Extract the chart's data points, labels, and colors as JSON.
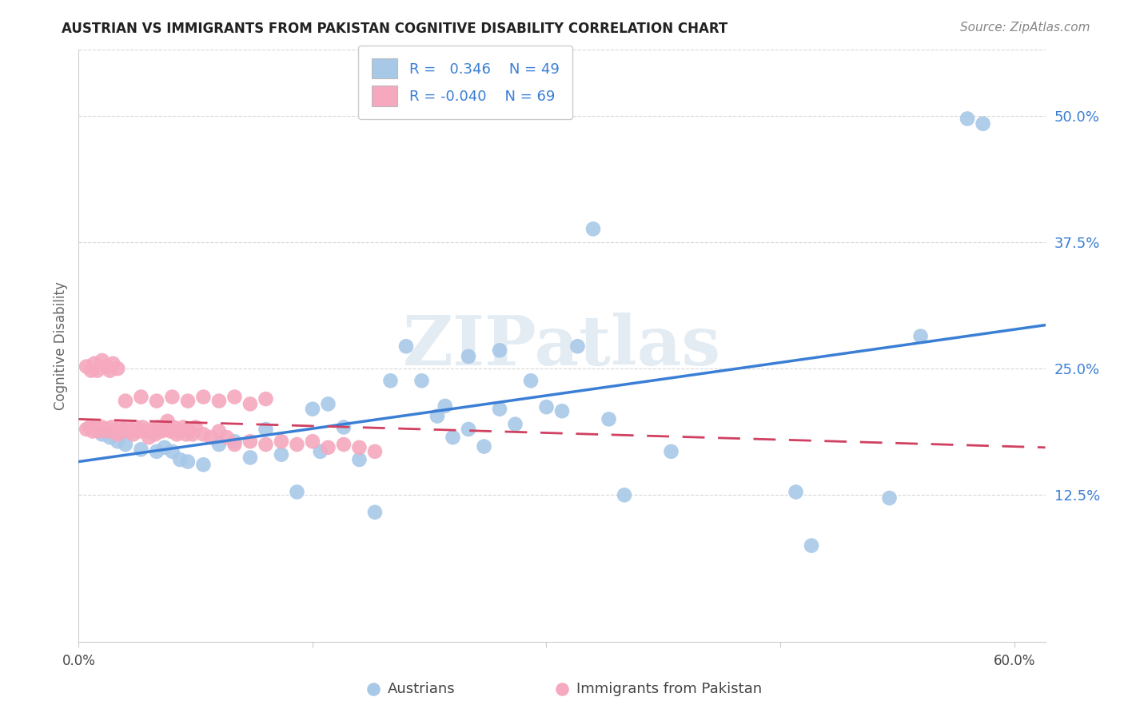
{
  "title": "AUSTRIAN VS IMMIGRANTS FROM PAKISTAN COGNITIVE DISABILITY CORRELATION CHART",
  "source": "Source: ZipAtlas.com",
  "ylabel": "Cognitive Disability",
  "ytick_labels": [
    "12.5%",
    "25.0%",
    "37.5%",
    "50.0%"
  ],
  "ytick_values": [
    0.125,
    0.25,
    0.375,
    0.5
  ],
  "xlim": [
    0.0,
    0.62
  ],
  "ylim": [
    -0.02,
    0.565
  ],
  "legend_blue_r": "0.346",
  "legend_blue_n": "49",
  "legend_pink_r": "-0.040",
  "legend_pink_n": "69",
  "blue_color": "#a8c8e8",
  "pink_color": "#f5a8be",
  "trendline_blue": "#3a7fd5",
  "trendline_pink": "#d04060",
  "watermark_color": "#c8d8e8",
  "grid_color": "#d8d8d8",
  "blue_trend_x": [
    0.0,
    0.62
  ],
  "blue_trend_y": [
    0.158,
    0.293
  ],
  "pink_trend_x": [
    0.0,
    0.62
  ],
  "pink_trend_y": [
    0.2,
    0.172
  ],
  "blue_scatter_x": [
    0.015,
    0.02,
    0.025,
    0.03,
    0.04,
    0.05,
    0.055,
    0.06,
    0.065,
    0.07,
    0.08,
    0.09,
    0.1,
    0.11,
    0.12,
    0.13,
    0.14,
    0.15,
    0.155,
    0.16,
    0.17,
    0.18,
    0.19,
    0.2,
    0.21,
    0.22,
    0.23,
    0.235,
    0.24,
    0.25,
    0.26,
    0.27,
    0.28,
    0.3,
    0.32,
    0.33,
    0.35,
    0.38,
    0.29,
    0.31,
    0.34,
    0.25,
    0.27,
    0.46,
    0.47,
    0.52,
    0.54,
    0.57,
    0.58
  ],
  "blue_scatter_y": [
    0.185,
    0.182,
    0.178,
    0.175,
    0.17,
    0.168,
    0.172,
    0.168,
    0.16,
    0.158,
    0.155,
    0.175,
    0.178,
    0.162,
    0.19,
    0.165,
    0.128,
    0.21,
    0.168,
    0.215,
    0.192,
    0.16,
    0.108,
    0.238,
    0.272,
    0.238,
    0.203,
    0.213,
    0.182,
    0.19,
    0.173,
    0.21,
    0.195,
    0.212,
    0.272,
    0.388,
    0.125,
    0.168,
    0.238,
    0.208,
    0.2,
    0.262,
    0.268,
    0.128,
    0.075,
    0.122,
    0.282,
    0.497,
    0.492
  ],
  "pink_scatter_x": [
    0.005,
    0.007,
    0.009,
    0.011,
    0.013,
    0.015,
    0.017,
    0.019,
    0.021,
    0.023,
    0.025,
    0.027,
    0.029,
    0.031,
    0.033,
    0.035,
    0.037,
    0.039,
    0.041,
    0.043,
    0.045,
    0.047,
    0.049,
    0.051,
    0.053,
    0.055,
    0.057,
    0.059,
    0.061,
    0.063,
    0.065,
    0.067,
    0.069,
    0.071,
    0.073,
    0.075,
    0.08,
    0.085,
    0.09,
    0.095,
    0.1,
    0.11,
    0.12,
    0.13,
    0.14,
    0.15,
    0.16,
    0.17,
    0.18,
    0.19,
    0.005,
    0.008,
    0.01,
    0.012,
    0.015,
    0.018,
    0.02,
    0.022,
    0.025,
    0.03,
    0.04,
    0.05,
    0.06,
    0.07,
    0.08,
    0.09,
    0.1,
    0.11,
    0.12
  ],
  "pink_scatter_y": [
    0.19,
    0.192,
    0.188,
    0.192,
    0.188,
    0.192,
    0.19,
    0.188,
    0.192,
    0.188,
    0.185,
    0.192,
    0.188,
    0.192,
    0.188,
    0.185,
    0.192,
    0.188,
    0.192,
    0.188,
    0.182,
    0.19,
    0.185,
    0.192,
    0.188,
    0.19,
    0.198,
    0.188,
    0.192,
    0.185,
    0.188,
    0.192,
    0.185,
    0.188,
    0.185,
    0.192,
    0.185,
    0.182,
    0.188,
    0.182,
    0.175,
    0.178,
    0.175,
    0.178,
    0.175,
    0.178,
    0.172,
    0.175,
    0.172,
    0.168,
    0.252,
    0.248,
    0.255,
    0.248,
    0.258,
    0.252,
    0.248,
    0.255,
    0.25,
    0.218,
    0.222,
    0.218,
    0.222,
    0.218,
    0.222,
    0.218,
    0.222,
    0.215,
    0.22
  ]
}
